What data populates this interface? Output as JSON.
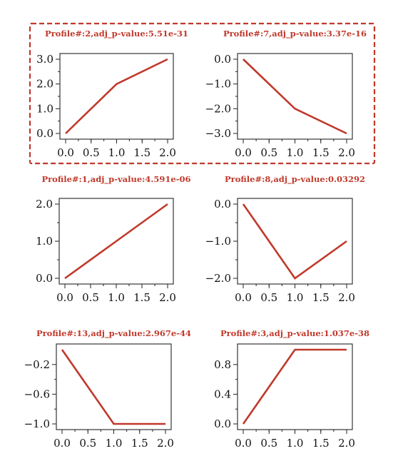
{
  "highlight_color": "#c0392b",
  "line_color": "#c0392b",
  "highlighted_panels": [
    0,
    1
  ],
  "chart_data": [
    {
      "type": "line",
      "title": "Profile#:2,adj_p-value:5.51e-31",
      "x": [
        0,
        1,
        2
      ],
      "values": [
        0,
        2,
        3
      ],
      "xlim": [
        0,
        2
      ],
      "ylim": [
        0,
        3
      ],
      "xticks": [
        0,
        0.5,
        1,
        1.5,
        2
      ],
      "xtick_labels": [
        "0.0",
        "0.5",
        "1.0",
        "1.5",
        "2.0"
      ],
      "yticks": [
        0,
        1,
        2,
        3
      ],
      "ytick_labels": [
        "0.0",
        "1.0",
        "2.0",
        "3.0"
      ],
      "grid": false
    },
    {
      "type": "line",
      "title": "Profile#:7,adj_p-value:3.37e-16",
      "x": [
        0,
        1,
        2
      ],
      "values": [
        0,
        -2,
        -3
      ],
      "xlim": [
        0,
        2
      ],
      "ylim": [
        -3,
        0
      ],
      "xticks": [
        0,
        0.5,
        1,
        1.5,
        2
      ],
      "xtick_labels": [
        "0.0",
        "0.5",
        "1.0",
        "1.5",
        "2.0"
      ],
      "yticks": [
        0,
        -1,
        -2,
        -3
      ],
      "ytick_labels": [
        "0.0",
        "−1.0",
        "−2.0",
        "−3.0"
      ],
      "grid": false
    },
    {
      "type": "line",
      "title": "Profile#:1,adj_p-value:4.591e-06",
      "x": [
        0,
        1,
        2
      ],
      "values": [
        0,
        1,
        2
      ],
      "xlim": [
        0,
        2
      ],
      "ylim": [
        0,
        2
      ],
      "xticks": [
        0,
        0.5,
        1,
        1.5,
        2
      ],
      "xtick_labels": [
        "0.0",
        "0.5",
        "1.0",
        "1.5",
        "2.0"
      ],
      "yticks": [
        0,
        1,
        2
      ],
      "ytick_labels": [
        "0.0",
        "1.0",
        "2.0"
      ],
      "grid": false
    },
    {
      "type": "line",
      "title": "Profile#:8,adj_p-value:0.03292",
      "x": [
        0,
        1,
        2
      ],
      "values": [
        0,
        -2,
        -1
      ],
      "xlim": [
        0,
        2
      ],
      "ylim": [
        -2,
        0
      ],
      "xticks": [
        0,
        0.5,
        1,
        1.5,
        2
      ],
      "xtick_labels": [
        "0.0",
        "0.5",
        "1.0",
        "1.5",
        "2.0"
      ],
      "yticks": [
        0,
        -1,
        -2
      ],
      "ytick_labels": [
        "0.0",
        "−1.0",
        "−2.0"
      ],
      "grid": false
    },
    {
      "type": "line",
      "title": "Profile#:13,adj_p-value:2.967e-44",
      "x": [
        0,
        1,
        2
      ],
      "values": [
        0,
        -1,
        -1
      ],
      "xlim": [
        0,
        2
      ],
      "ylim": [
        -1,
        0
      ],
      "xticks": [
        0,
        0.5,
        1,
        1.5,
        2
      ],
      "xtick_labels": [
        "0.0",
        "0.5",
        "1.0",
        "1.5",
        "2.0"
      ],
      "yticks": [
        -0.2,
        -0.6,
        -1.0
      ],
      "ytick_labels": [
        "−0.2",
        "−0.6",
        "−1.0"
      ],
      "grid": false
    },
    {
      "type": "line",
      "title": "Profile#:3,adj_p-value:1.037e-38",
      "x": [
        0,
        1,
        2
      ],
      "values": [
        0,
        1,
        1
      ],
      "xlim": [
        0,
        2
      ],
      "ylim": [
        0,
        1
      ],
      "xticks": [
        0,
        0.5,
        1,
        1.5,
        2
      ],
      "xtick_labels": [
        "0.0",
        "0.5",
        "1.0",
        "1.5",
        "2.0"
      ],
      "yticks": [
        0,
        0.4,
        0.8
      ],
      "ytick_labels": [
        "0.0",
        "0.4",
        "0.8"
      ],
      "grid": false
    }
  ]
}
